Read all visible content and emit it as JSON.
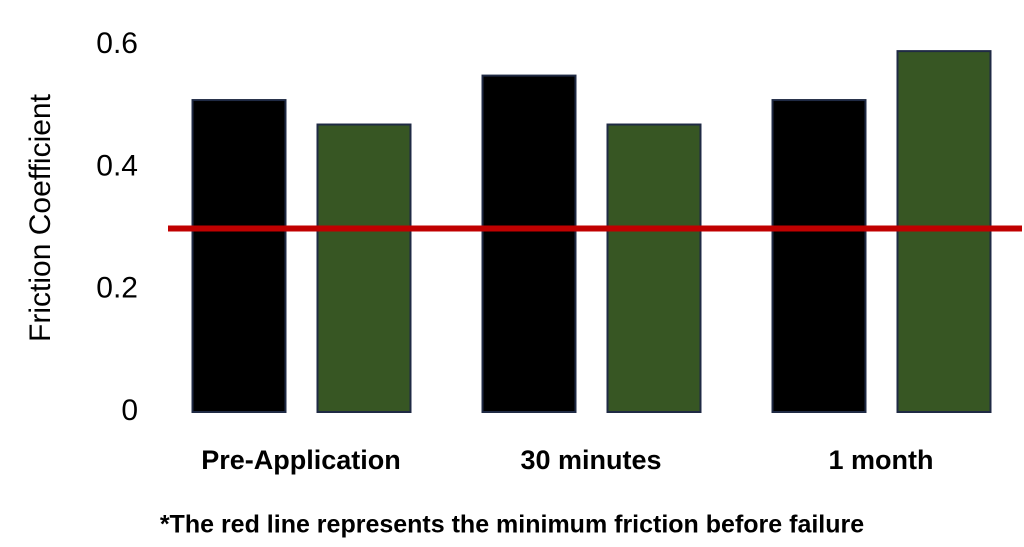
{
  "chart_data": {
    "type": "bar",
    "y_label": "Friction Coefficient",
    "categories": [
      "Pre-Application",
      "30 minutes",
      "1 month"
    ],
    "series": [
      {
        "color": "#000000",
        "values": [
          0.51,
          0.55,
          0.51
        ]
      },
      {
        "color": "#375623",
        "values": [
          0.47,
          0.47,
          0.59
        ]
      }
    ],
    "ylim": [
      0,
      0.6
    ],
    "yticks": [
      0,
      0.2,
      0.4,
      0.6
    ],
    "grid": false,
    "reference_line": {
      "value": 0.3,
      "color": "#c00000"
    },
    "annotation": "*The red line represents the minimum friction before failure"
  }
}
